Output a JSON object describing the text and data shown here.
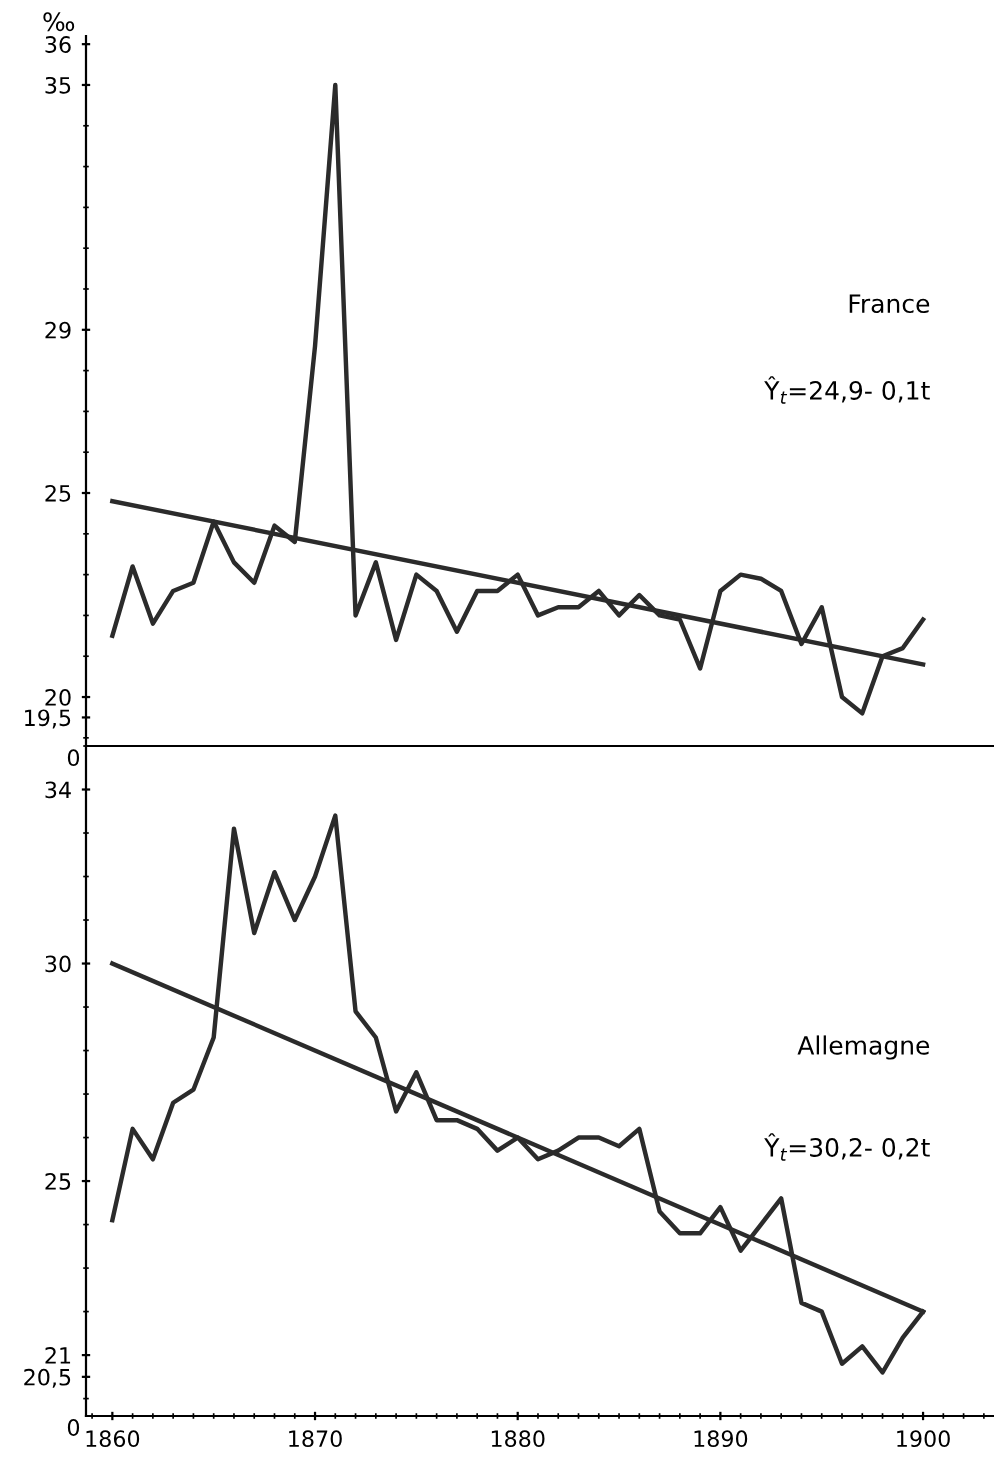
{
  "chart_data": [
    {
      "type": "line",
      "ylabel": "‰",
      "tick_labels": "y",
      "grid": false,
      "legend": false,
      "marker": "none",
      "line_style": "solid",
      "xlim": [
        1858.7,
        1903.5
      ],
      "xticks": [
        1860,
        1870,
        1880,
        1890,
        1900
      ],
      "ylim": [
        18.8,
        36.2
      ],
      "yticks": [
        {
          "value": 19.5,
          "label": "19,5"
        },
        20,
        25,
        29,
        35,
        36
      ],
      "annotations": [
        "France",
        "Ŷ$_{t}$=24,9- 0,1t",
        "0"
      ],
      "series": [
        {
          "color": "#2b2b2b",
          "x": [
            1860,
            1861,
            1862,
            1863,
            1864,
            1865,
            1866,
            1867,
            1868,
            1869,
            1870,
            1871,
            1872,
            1873,
            1874,
            1875,
            1876,
            1877,
            1878,
            1879,
            1880,
            1881,
            1882,
            1883,
            1884,
            1885,
            1886,
            1887,
            1888,
            1889,
            1890,
            1891,
            1892,
            1893,
            1894,
            1895,
            1896,
            1897,
            1898,
            1899,
            1900
          ],
          "values": [
            21.5,
            23.2,
            21.8,
            22.6,
            22.8,
            24.3,
            23.3,
            22.8,
            24.2,
            23.8,
            28.6,
            35,
            22.0,
            23.3,
            21.4,
            23.0,
            22.6,
            21.6,
            22.6,
            22.6,
            23.0,
            22.0,
            22.2,
            22.2,
            22.6,
            22.0,
            22.5,
            22.0,
            21.9,
            20.7,
            22.6,
            23.0,
            22.9,
            22.6,
            21.3,
            22.2,
            20.0,
            19.6,
            21.0,
            21.2,
            21.9
          ]
        },
        {
          "color": "#2b2b2b",
          "x": [
            1860,
            1900
          ],
          "values": [
            24.8,
            20.8
          ]
        }
      ]
    },
    {
      "type": "line",
      "grid": false,
      "legend": false,
      "marker": "none",
      "line_style": "solid",
      "xlim": [
        1858.7,
        1903.5
      ],
      "xticks": [
        1860,
        1870,
        1880,
        1890,
        1900
      ],
      "ylim": [
        19.6,
        35
      ],
      "yticks": [
        {
          "value": 20.5,
          "label": "20,5"
        },
        21,
        25,
        30,
        34
      ],
      "annotations": [
        "Allemagne",
        "Ŷ$_{t}$=30,2- 0,2t",
        "0"
      ],
      "series": [
        {
          "color": "#2b2b2b",
          "x": [
            1860,
            1861,
            1862,
            1863,
            1864,
            1865,
            1866,
            1867,
            1868,
            1869,
            1870,
            1871,
            1872,
            1873,
            1874,
            1875,
            1876,
            1877,
            1878,
            1879,
            1880,
            1881,
            1882,
            1883,
            1884,
            1885,
            1886,
            1887,
            1888,
            1889,
            1890,
            1891,
            1892,
            1893,
            1894,
            1895,
            1896,
            1897,
            1898,
            1899,
            1900
          ],
          "values": [
            24.1,
            26.2,
            25.5,
            26.8,
            27.1,
            28.3,
            33.1,
            30.7,
            32.1,
            31.0,
            32.0,
            33.4,
            28.9,
            28.3,
            26.6,
            27.5,
            26.4,
            26.4,
            26.2,
            25.7,
            26.0,
            25.5,
            25.7,
            26.0,
            26.0,
            25.8,
            26.2,
            24.3,
            23.8,
            23.8,
            24.4,
            23.4,
            24.0,
            24.6,
            22.2,
            22.0,
            20.8,
            21.2,
            20.6,
            21.4,
            22.0
          ]
        },
        {
          "color": "#2b2b2b",
          "x": [
            1860,
            1900
          ],
          "values": [
            30.0,
            22.0
          ]
        }
      ]
    }
  ]
}
